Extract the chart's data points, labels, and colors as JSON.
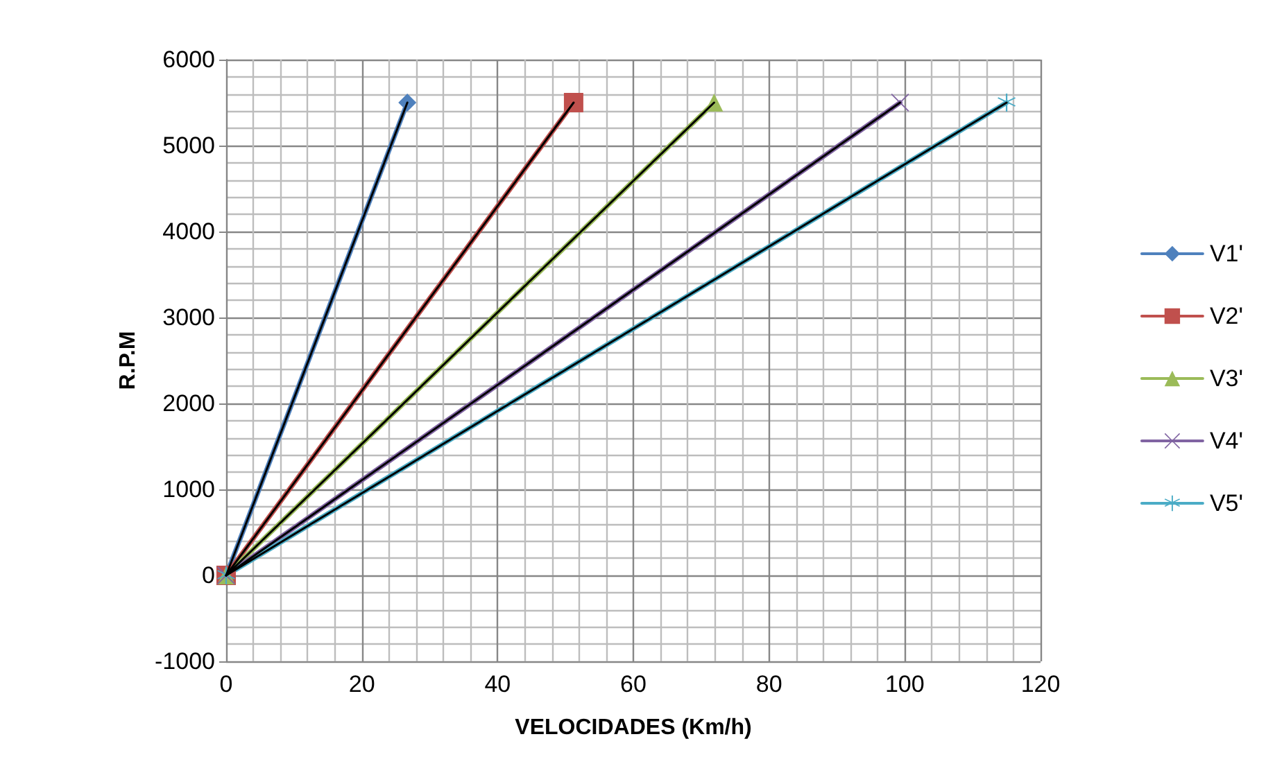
{
  "chart_data": {
    "type": "line",
    "xlabel": "VELOCIDADES (Km/h)",
    "ylabel": "R.P.M",
    "xlim": [
      0,
      120
    ],
    "xticks": [
      0,
      20,
      40,
      60,
      80,
      100,
      120
    ],
    "ylim": [
      -1000,
      6000
    ],
    "yticks": [
      -1000,
      0,
      1000,
      2000,
      3000,
      4000,
      5000,
      6000
    ],
    "grid": true,
    "legend": "right",
    "series": [
      {
        "name": "V1'",
        "color": "#4f81bd",
        "marker": "diamond",
        "x": [
          0,
          26.7
        ],
        "values": [
          0,
          5500
        ]
      },
      {
        "name": "V2'",
        "color": "#c0504d",
        "marker": "square",
        "x": [
          0,
          51.2
        ],
        "values": [
          0,
          5500
        ]
      },
      {
        "name": "V3'",
        "color": "#9bbb59",
        "marker": "triangle",
        "x": [
          0,
          71.9
        ],
        "values": [
          0,
          5500
        ]
      },
      {
        "name": "V4'",
        "color": "#8064a2",
        "marker": "cross",
        "x": [
          0,
          99.3
        ],
        "values": [
          0,
          5500
        ]
      },
      {
        "name": "V5'",
        "color": "#4bacc6",
        "marker": "star",
        "x": [
          0,
          115
        ],
        "values": [
          0,
          5500
        ]
      },
      {
        "color": "#000000",
        "marker": "none",
        "x": [
          0,
          26.7
        ],
        "values": [
          0,
          5500
        ]
      },
      {
        "color": "#000000",
        "marker": "none",
        "x": [
          0,
          51.2
        ],
        "values": [
          0,
          5500
        ]
      },
      {
        "color": "#000000",
        "marker": "none",
        "x": [
          0,
          71.9
        ],
        "values": [
          0,
          5500
        ]
      },
      {
        "color": "#000000",
        "marker": "none",
        "x": [
          0,
          99.3
        ],
        "values": [
          0,
          5500
        ]
      },
      {
        "color": "#000000",
        "marker": "none",
        "x": [
          0,
          115
        ],
        "values": [
          0,
          5500
        ]
      }
    ]
  }
}
